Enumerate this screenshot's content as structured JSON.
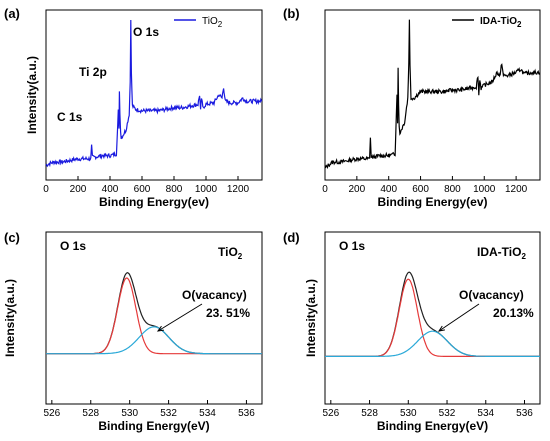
{
  "chart_data": [
    {
      "id": "a",
      "panel_label": "(a)",
      "type": "line",
      "title": "",
      "xlabel": "Binding Energy(ev)",
      "ylabel": "Intensity(a.u.)",
      "xlim": [
        0,
        1350
      ],
      "ylim": [
        0,
        1
      ],
      "x_ticks": [
        "0",
        "200",
        "400",
        "600",
        "800",
        "1000",
        "1200"
      ],
      "legend": {
        "placement": "top-right",
        "entries": [
          "TiO2"
        ]
      },
      "peak_labels": [
        {
          "text": "C 1s",
          "x": 285
        },
        {
          "text": "Ti 2p",
          "x": 459
        },
        {
          "text": "O 1s",
          "x": 530
        }
      ],
      "series": [
        {
          "name": "TiO2",
          "color": "#1a1adf",
          "x": [
            0,
            20,
            50,
            100,
            150,
            200,
            250,
            280,
            285,
            290,
            300,
            350,
            400,
            440,
            452,
            456,
            459,
            462,
            466,
            470,
            500,
            520,
            526,
            530,
            534,
            540,
            560,
            600,
            650,
            700,
            750,
            800,
            850,
            900,
            950,
            960,
            966,
            972,
            980,
            1000,
            1050,
            1080,
            1100,
            1110,
            1120,
            1150,
            1200,
            1230,
            1250,
            1300,
            1350
          ],
          "y": [
            0.08,
            0.09,
            0.1,
            0.1,
            0.11,
            0.12,
            0.12,
            0.12,
            0.2,
            0.13,
            0.13,
            0.14,
            0.14,
            0.15,
            0.42,
            0.3,
            0.55,
            0.4,
            0.3,
            0.25,
            0.3,
            0.4,
            0.6,
            1.0,
            0.65,
            0.45,
            0.43,
            0.42,
            0.42,
            0.42,
            0.43,
            0.44,
            0.44,
            0.45,
            0.46,
            0.52,
            0.42,
            0.5,
            0.44,
            0.46,
            0.47,
            0.52,
            0.5,
            0.57,
            0.48,
            0.47,
            0.47,
            0.5,
            0.48,
            0.48,
            0.48
          ]
        }
      ]
    },
    {
      "id": "b",
      "panel_label": "(b)",
      "type": "line",
      "title": "",
      "xlabel": "Binding Energy(ev)",
      "ylabel": "",
      "xlim": [
        0,
        1350
      ],
      "ylim": [
        0,
        1
      ],
      "x_ticks": [
        "0",
        "200",
        "400",
        "600",
        "800",
        "1000",
        "1200"
      ],
      "legend": {
        "placement": "top-right",
        "entries": [
          "IDA-TiO2"
        ]
      },
      "series": [
        {
          "name": "IDA-TiO2",
          "color": "#000000",
          "x": [
            0,
            20,
            50,
            100,
            150,
            200,
            250,
            280,
            285,
            290,
            300,
            350,
            400,
            440,
            452,
            456,
            459,
            462,
            466,
            470,
            500,
            520,
            526,
            530,
            534,
            540,
            560,
            600,
            650,
            700,
            750,
            800,
            850,
            900,
            950,
            960,
            966,
            972,
            980,
            1000,
            1050,
            1080,
            1100,
            1110,
            1120,
            1150,
            1200,
            1230,
            1250,
            1300,
            1350
          ],
          "y": [
            0.06,
            0.08,
            0.1,
            0.1,
            0.11,
            0.12,
            0.12,
            0.12,
            0.26,
            0.13,
            0.13,
            0.14,
            0.14,
            0.15,
            0.52,
            0.35,
            0.7,
            0.45,
            0.32,
            0.28,
            0.35,
            0.5,
            0.72,
            1.0,
            0.7,
            0.5,
            0.5,
            0.54,
            0.54,
            0.54,
            0.54,
            0.55,
            0.55,
            0.56,
            0.57,
            0.64,
            0.52,
            0.62,
            0.56,
            0.58,
            0.6,
            0.66,
            0.64,
            0.72,
            0.64,
            0.64,
            0.66,
            0.68,
            0.65,
            0.66,
            0.66
          ]
        }
      ]
    },
    {
      "id": "c",
      "panel_label": "(c)",
      "type": "line",
      "title": "",
      "corner_label": "O 1s",
      "sample_label": "TiO2",
      "xlabel": "Binding Energy(eV)",
      "ylabel": "Intensity(a.u.)",
      "xlim": [
        525.7,
        536.8
      ],
      "ylim": [
        0,
        1
      ],
      "x_ticks": [
        "526",
        "528",
        "530",
        "532",
        "534",
        "536"
      ],
      "annotation": {
        "label": "O(vacancy)",
        "value": "23. 51%"
      },
      "series": [
        {
          "role": "envelope",
          "color": "#222222",
          "peaks": [
            {
              "c": 529.85,
              "a": 0.93,
              "w": 0.55
            },
            {
              "c": 531.25,
              "a": 0.33,
              "w": 0.9
            }
          ],
          "baseline": 0.37
        },
        {
          "role": "lattice-oxygen",
          "color": "#e53a3a",
          "peaks": [
            {
              "c": 529.85,
              "a": 0.93,
              "w": 0.55
            }
          ],
          "baseline": 0.37
        },
        {
          "role": "vacancy-oxygen",
          "color": "#2aa9d8",
          "peaks": [
            {
              "c": 531.25,
              "a": 0.33,
              "w": 0.9
            }
          ],
          "baseline": 0.37
        }
      ]
    },
    {
      "id": "d",
      "panel_label": "(d)",
      "type": "line",
      "title": "",
      "corner_label": "O 1s",
      "sample_label": "IDA-TiO2",
      "xlabel": "Binding Energy(eV)",
      "ylabel": "Intensity(a.u.)",
      "xlim": [
        525.7,
        536.8
      ],
      "ylim": [
        0,
        1
      ],
      "x_ticks": [
        "526",
        "528",
        "530",
        "532",
        "534",
        "536"
      ],
      "annotation": {
        "label": "O(vacancy)",
        "value": "20.13%"
      },
      "series": [
        {
          "role": "envelope",
          "color": "#222222",
          "peaks": [
            {
              "c": 530.0,
              "a": 0.92,
              "w": 0.55
            },
            {
              "c": 531.25,
              "a": 0.3,
              "w": 0.9
            }
          ],
          "baseline": 0.35
        },
        {
          "role": "lattice-oxygen",
          "color": "#e53a3a",
          "peaks": [
            {
              "c": 530.0,
              "a": 0.92,
              "w": 0.55
            }
          ],
          "baseline": 0.35
        },
        {
          "role": "vacancy-oxygen",
          "color": "#2aa9d8",
          "peaks": [
            {
              "c": 531.25,
              "a": 0.3,
              "w": 0.9
            }
          ],
          "baseline": 0.35
        }
      ]
    }
  ]
}
